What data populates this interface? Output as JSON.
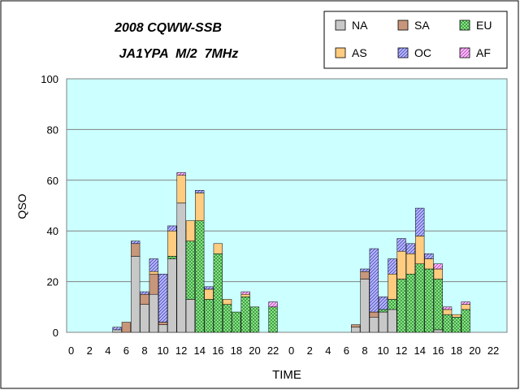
{
  "chart_data": {
    "type": "bar",
    "stacked": true,
    "title": "2008 CQWW-SSB",
    "subtitle": "JA1YPA  M/2  7MHz",
    "xlabel": "TIME",
    "ylabel": "QSO",
    "ylim": [
      0,
      100
    ],
    "yticks": [
      0,
      20,
      40,
      60,
      80,
      100
    ],
    "grid": "horizontal",
    "legend_position": "top-right",
    "plot_background": "#ccffff",
    "categories": [
      "0",
      "1",
      "2",
      "3",
      "4",
      "5",
      "6",
      "7",
      "8",
      "9",
      "10",
      "11",
      "12",
      "13",
      "14",
      "15",
      "16",
      "17",
      "18",
      "19",
      "20",
      "21",
      "22",
      "23",
      "0",
      "1",
      "2",
      "3",
      "4",
      "5",
      "6",
      "7",
      "8",
      "9",
      "10",
      "11",
      "12",
      "13",
      "14",
      "15",
      "16",
      "17",
      "18",
      "19",
      "20",
      "21",
      "22",
      "23"
    ],
    "xtick_labels": [
      "0",
      "",
      "2",
      "",
      "4",
      "",
      "6",
      "",
      "8",
      "",
      "10",
      "",
      "12",
      "",
      "14",
      "",
      "16",
      "",
      "18",
      "",
      "20",
      "",
      "22",
      "",
      "0",
      "",
      "2",
      "",
      "4",
      "",
      "6",
      "",
      "8",
      "",
      "10",
      "",
      "12",
      "",
      "14",
      "",
      "16",
      "",
      "18",
      "",
      "20",
      "",
      "22",
      ""
    ],
    "series": [
      {
        "name": "NA",
        "color": "#c8c8c8",
        "pattern": "none",
        "values": [
          0,
          0,
          0,
          0,
          0,
          1,
          0,
          30,
          11,
          15,
          3,
          29,
          51,
          13,
          0,
          0,
          0,
          0,
          0,
          0,
          0,
          0,
          0,
          0,
          0,
          0,
          0,
          0,
          0,
          0,
          0,
          2,
          21,
          6,
          8,
          9,
          0,
          0,
          0,
          0,
          1,
          0,
          0,
          0,
          0,
          0,
          0,
          0
        ]
      },
      {
        "name": "SA",
        "color": "#c8967a",
        "pattern": "none",
        "values": [
          0,
          0,
          0,
          0,
          0,
          0,
          4,
          5,
          4,
          8,
          1,
          0,
          0,
          0,
          0,
          0,
          0,
          0,
          0,
          0,
          0,
          0,
          0,
          0,
          0,
          0,
          0,
          0,
          0,
          0,
          0,
          1,
          3,
          2,
          0,
          0,
          0,
          0,
          0,
          0,
          0,
          0,
          0,
          0,
          0,
          0,
          0,
          0
        ]
      },
      {
        "name": "EU",
        "color": "#99ee99",
        "pattern": "cross",
        "values": [
          0,
          0,
          0,
          0,
          0,
          0,
          0,
          0,
          0,
          0,
          0,
          1,
          0,
          23,
          44,
          13,
          31,
          11,
          8,
          14,
          10,
          0,
          10,
          0,
          0,
          0,
          0,
          0,
          0,
          0,
          0,
          0,
          0,
          0,
          1,
          4,
          21,
          23,
          27,
          25,
          20,
          7,
          6,
          9,
          0,
          0,
          0,
          0
        ]
      },
      {
        "name": "AS",
        "color": "#ffcc80",
        "pattern": "none",
        "values": [
          0,
          0,
          0,
          0,
          0,
          0,
          0,
          0,
          0,
          1,
          0,
          10,
          11,
          8,
          11,
          4,
          4,
          2,
          0,
          1,
          0,
          0,
          0,
          0,
          0,
          0,
          0,
          0,
          0,
          0,
          0,
          0,
          0,
          0,
          0,
          10,
          11,
          8,
          11,
          4,
          4,
          2,
          1,
          2,
          0,
          0,
          0,
          0
        ]
      },
      {
        "name": "OC",
        "color": "#a8a8ff",
        "pattern": "diag",
        "values": [
          0,
          0,
          0,
          0,
          0,
          1,
          0,
          1,
          1,
          5,
          19,
          2,
          0,
          0,
          1,
          1,
          0,
          0,
          0,
          0,
          0,
          0,
          0,
          0,
          0,
          0,
          0,
          0,
          0,
          0,
          0,
          0,
          1,
          25,
          5,
          6,
          5,
          4,
          11,
          2,
          0,
          0,
          0,
          0,
          0,
          0,
          0,
          0
        ]
      },
      {
        "name": "AF",
        "color": "#ffaaff",
        "pattern": "diag",
        "values": [
          0,
          0,
          0,
          0,
          0,
          0,
          0,
          0,
          0,
          0,
          0,
          0,
          1,
          0,
          0,
          0,
          0,
          0,
          0,
          1,
          0,
          0,
          2,
          0,
          0,
          0,
          0,
          0,
          0,
          0,
          0,
          0,
          0,
          0,
          0,
          0,
          0,
          0,
          0,
          0,
          2,
          1,
          0,
          1,
          0,
          0,
          0,
          0
        ]
      }
    ]
  }
}
